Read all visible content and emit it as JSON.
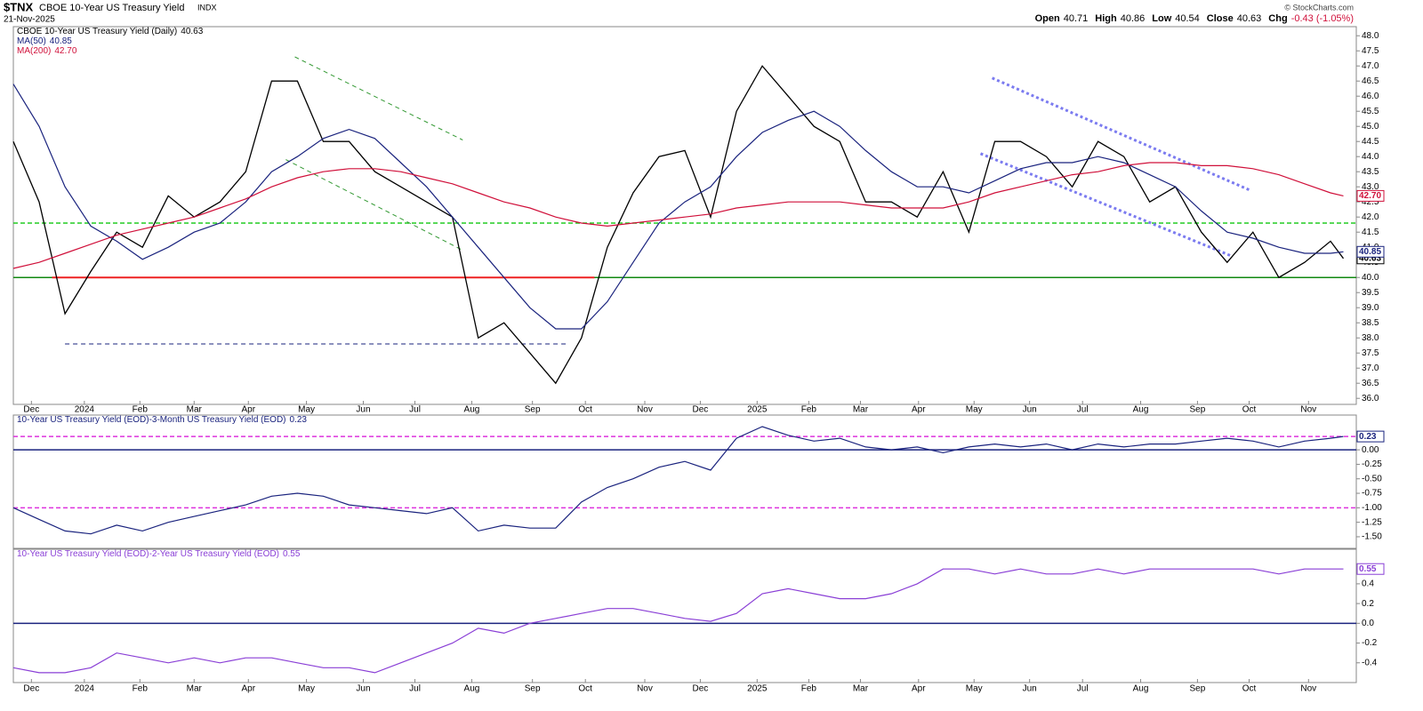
{
  "header": {
    "symbol": "$TNX",
    "name": "CBOE 10-Year US Treasury Yield",
    "exchange": "INDX",
    "date": "21-Nov-2025",
    "quote": [
      {
        "label": "Open",
        "value": "40.71"
      },
      {
        "label": "High",
        "value": "40.86"
      },
      {
        "label": "Low",
        "value": "40.54"
      },
      {
        "label": "Close",
        "value": "40.63"
      },
      {
        "label": "Chg",
        "value": "-0.43 (-1.05%)"
      }
    ],
    "copyright": "© StockCharts.com"
  },
  "chart_data": [
    {
      "type": "line",
      "x": [
        0,
        2,
        4,
        6,
        8,
        10,
        12,
        14,
        16,
        18,
        20,
        22,
        24,
        26,
        28,
        30,
        32,
        34,
        36,
        38,
        40,
        42,
        44,
        46,
        48,
        50,
        52,
        54,
        56,
        58,
        60,
        62,
        64,
        66,
        68,
        70,
        72,
        74,
        76,
        78,
        80,
        82,
        84,
        86,
        88,
        90,
        92,
        94,
        96,
        98,
        100,
        102,
        103
      ],
      "xlim": [
        0,
        104
      ],
      "xticks": [
        {
          "value": 1.4,
          "label": "Dec"
        },
        {
          "value": 5.5,
          "label": "2024"
        },
        {
          "value": 9.8,
          "label": "Feb"
        },
        {
          "value": 14.0,
          "label": "Mar"
        },
        {
          "value": 18.2,
          "label": "Apr"
        },
        {
          "value": 22.7,
          "label": "May"
        },
        {
          "value": 27.1,
          "label": "Jun"
        },
        {
          "value": 31.1,
          "label": "Jul"
        },
        {
          "value": 35.5,
          "label": "Aug"
        },
        {
          "value": 40.2,
          "label": "Sep"
        },
        {
          "value": 44.3,
          "label": "Oct"
        },
        {
          "value": 48.9,
          "label": "Nov"
        },
        {
          "value": 53.2,
          "label": "Dec"
        },
        {
          "value": 57.6,
          "label": "2025"
        },
        {
          "value": 61.6,
          "label": "Feb"
        },
        {
          "value": 65.6,
          "label": "Mar"
        },
        {
          "value": 70.1,
          "label": "Apr"
        },
        {
          "value": 74.4,
          "label": "May"
        },
        {
          "value": 78.7,
          "label": "Jun"
        },
        {
          "value": 82.8,
          "label": "Jul"
        },
        {
          "value": 87.3,
          "label": "Aug"
        },
        {
          "value": 91.7,
          "label": "Sep"
        },
        {
          "value": 95.7,
          "label": "Oct"
        },
        {
          "value": 100.3,
          "label": "Nov"
        }
      ],
      "ylim": [
        35.8,
        48.3
      ],
      "yticks": [
        {
          "value": 36.0,
          "label": "36.0"
        },
        36.5,
        {
          "value": 37.0,
          "label": "37.0"
        },
        37.5,
        {
          "value": 38.0,
          "label": "38.0"
        },
        38.5,
        {
          "value": 39.0,
          "label": "39.0"
        },
        39.5,
        {
          "value": 40.0,
          "label": "40.0"
        },
        40.5,
        {
          "value": 41.0,
          "label": "41.0"
        },
        41.5,
        {
          "value": 42.0,
          "label": "42.0"
        },
        42.5,
        {
          "value": 43.0,
          "label": "43.0"
        },
        43.5,
        {
          "value": 44.0,
          "label": "44.0"
        },
        44.5,
        {
          "value": 45.0,
          "label": "45.0"
        },
        45.5,
        {
          "value": 46.0,
          "label": "46.0"
        },
        46.5,
        {
          "value": 47.0,
          "label": "47.0"
        },
        47.5,
        {
          "value": 48.0,
          "label": "48.0"
        }
      ],
      "series": [
        {
          "name": "CBOE 10-Year US Treasury Yield (Daily)",
          "color": "#000000",
          "last_label": "40.63",
          "values": [
            44.5,
            42.5,
            38.8,
            40.2,
            41.5,
            41.0,
            42.7,
            42.0,
            42.5,
            43.5,
            46.5,
            46.5,
            44.5,
            44.5,
            43.5,
            43.0,
            42.5,
            42.0,
            38.0,
            38.5,
            37.5,
            36.5,
            38.0,
            41.0,
            42.8,
            44.0,
            44.2,
            42.0,
            45.5,
            47.0,
            46.0,
            45.0,
            44.5,
            42.5,
            42.5,
            42.0,
            43.5,
            41.5,
            44.5,
            44.5,
            44.0,
            43.0,
            44.5,
            44.0,
            42.5,
            43.0,
            41.5,
            40.5,
            41.5,
            40.0,
            40.5,
            41.2,
            40.63
          ]
        },
        {
          "name": "MA(50)",
          "color": "#1a237e",
          "last_label": "40.85",
          "values": [
            46.4,
            45.0,
            43.0,
            41.7,
            41.2,
            40.6,
            41.0,
            41.5,
            41.8,
            42.5,
            43.5,
            44.0,
            44.6,
            44.9,
            44.6,
            43.8,
            43.0,
            42.0,
            41.0,
            40.0,
            39.0,
            38.3,
            38.3,
            39.2,
            40.5,
            41.8,
            42.5,
            43.0,
            44.0,
            44.8,
            45.2,
            45.5,
            45.0,
            44.2,
            43.5,
            43.0,
            43.0,
            42.8,
            43.2,
            43.6,
            43.8,
            43.8,
            44.0,
            43.8,
            43.4,
            43.0,
            42.2,
            41.5,
            41.3,
            41.0,
            40.8,
            40.8,
            40.85
          ]
        },
        {
          "name": "MA(200)",
          "color": "#d0103a",
          "last_label": "42.70",
          "values": [
            40.3,
            40.5,
            40.8,
            41.1,
            41.4,
            41.6,
            41.8,
            42.0,
            42.3,
            42.6,
            43.0,
            43.3,
            43.5,
            43.6,
            43.6,
            43.5,
            43.3,
            43.1,
            42.8,
            42.5,
            42.3,
            42.0,
            41.8,
            41.7,
            41.8,
            41.9,
            42.0,
            42.1,
            42.3,
            42.4,
            42.5,
            42.5,
            42.5,
            42.4,
            42.3,
            42.3,
            42.3,
            42.5,
            42.8,
            43.0,
            43.2,
            43.4,
            43.5,
            43.7,
            43.8,
            43.8,
            43.7,
            43.7,
            43.6,
            43.4,
            43.1,
            42.8,
            42.7
          ]
        }
      ],
      "hlines": [
        {
          "y": 41.8,
          "color": "#22cc22",
          "dash": true
        },
        {
          "y": 40.0,
          "color": "#118811",
          "dash": false
        }
      ],
      "annotations": [
        {
          "x": [
            3,
            45
          ],
          "y": [
            40.0,
            40.0
          ],
          "color": "#ee2222",
          "style": "solid"
        },
        {
          "x": [
            4,
            43
          ],
          "y": [
            37.8,
            37.8
          ],
          "color": "#1a237e",
          "style": "dash"
        },
        {
          "x": [
            21.8,
            34.8
          ],
          "y": [
            47.3,
            44.55
          ],
          "color": "#339933",
          "style": "dash"
        },
        {
          "x": [
            21.1,
            34.8
          ],
          "y": [
            43.9,
            40.9
          ],
          "color": "#339933",
          "style": "dash"
        },
        {
          "x": [
            75.8,
            95.7
          ],
          "y": [
            46.6,
            42.9
          ],
          "color": "#7b7bf0",
          "style": "dot"
        },
        {
          "x": [
            74.9,
            94.4
          ],
          "y": [
            44.1,
            40.7
          ],
          "color": "#7b7bf0",
          "style": "dot"
        }
      ]
    },
    {
      "type": "line",
      "x": [
        0,
        2,
        4,
        6,
        8,
        10,
        12,
        14,
        16,
        18,
        20,
        22,
        24,
        26,
        28,
        30,
        32,
        34,
        36,
        38,
        40,
        42,
        44,
        46,
        48,
        50,
        52,
        54,
        56,
        58,
        60,
        62,
        64,
        66,
        68,
        70,
        72,
        74,
        76,
        78,
        80,
        82,
        84,
        86,
        88,
        90,
        92,
        94,
        96,
        98,
        100,
        102,
        103
      ],
      "xlim": [
        0,
        104
      ],
      "ylim": [
        -1.7,
        0.6
      ],
      "yticks": [
        {
          "value": 0.0,
          "label": "0.00"
        },
        -0.25,
        {
          "value": -0.5,
          "label": "-0.50"
        },
        -0.75,
        {
          "value": -1.0,
          "label": "-1.00"
        },
        -1.25,
        {
          "value": -1.5,
          "label": "-1.50"
        }
      ],
      "series": [
        {
          "name": "10-Year US Treasury Yield (EOD)-3-Month US Treasury Yield (EOD)",
          "color": "#1a237e",
          "last_label": "0.23",
          "values": [
            -1.0,
            -1.2,
            -1.4,
            -1.45,
            -1.3,
            -1.4,
            -1.25,
            -1.15,
            -1.05,
            -0.95,
            -0.8,
            -0.75,
            -0.8,
            -0.95,
            -1.0,
            -1.05,
            -1.1,
            -1.0,
            -1.4,
            -1.3,
            -1.35,
            -1.35,
            -0.9,
            -0.65,
            -0.5,
            -0.3,
            -0.2,
            -0.35,
            0.2,
            0.4,
            0.25,
            0.15,
            0.2,
            0.05,
            0.0,
            0.05,
            -0.05,
            0.05,
            0.1,
            0.05,
            0.1,
            0.0,
            0.1,
            0.05,
            0.1,
            0.1,
            0.15,
            0.2,
            0.15,
            0.05,
            0.15,
            0.2,
            0.23
          ]
        }
      ],
      "hlines": [
        {
          "y": 0.0,
          "color": "#1a237e",
          "dash": false
        },
        {
          "y": 0.23,
          "color": "#dd33dd",
          "dash": true
        },
        {
          "y": -1.0,
          "color": "#dd33dd",
          "dash": true
        }
      ]
    },
    {
      "type": "line",
      "x": [
        0,
        2,
        4,
        6,
        8,
        10,
        12,
        14,
        16,
        18,
        20,
        22,
        24,
        26,
        28,
        30,
        32,
        34,
        36,
        38,
        40,
        42,
        44,
        46,
        48,
        50,
        52,
        54,
        56,
        58,
        60,
        62,
        64,
        66,
        68,
        70,
        72,
        74,
        76,
        78,
        80,
        82,
        84,
        86,
        88,
        90,
        92,
        94,
        96,
        98,
        100,
        102,
        103
      ],
      "xlim": [
        0,
        104
      ],
      "xticks": [
        {
          "value": 1.4,
          "label": "Dec"
        },
        {
          "value": 5.5,
          "label": "2024"
        },
        {
          "value": 9.8,
          "label": "Feb"
        },
        {
          "value": 14.0,
          "label": "Mar"
        },
        {
          "value": 18.2,
          "label": "Apr"
        },
        {
          "value": 22.7,
          "label": "May"
        },
        {
          "value": 27.1,
          "label": "Jun"
        },
        {
          "value": 31.1,
          "label": "Jul"
        },
        {
          "value": 35.5,
          "label": "Aug"
        },
        {
          "value": 40.2,
          "label": "Sep"
        },
        {
          "value": 44.3,
          "label": "Oct"
        },
        {
          "value": 48.9,
          "label": "Nov"
        },
        {
          "value": 53.2,
          "label": "Dec"
        },
        {
          "value": 57.6,
          "label": "2025"
        },
        {
          "value": 61.6,
          "label": "Feb"
        },
        {
          "value": 65.6,
          "label": "Mar"
        },
        {
          "value": 70.1,
          "label": "Apr"
        },
        {
          "value": 74.4,
          "label": "May"
        },
        {
          "value": 78.7,
          "label": "Jun"
        },
        {
          "value": 82.8,
          "label": "Jul"
        },
        {
          "value": 87.3,
          "label": "Aug"
        },
        {
          "value": 91.7,
          "label": "Sep"
        },
        {
          "value": 95.7,
          "label": "Oct"
        },
        {
          "value": 100.3,
          "label": "Nov"
        }
      ],
      "ylim": [
        -0.6,
        0.75
      ],
      "yticks": [
        0.4,
        0.2,
        {
          "value": 0.0,
          "label": "0.0"
        },
        -0.2,
        -0.4
      ],
      "series": [
        {
          "name": "10-Year US Treasury Yield (EOD)-2-Year US Treasury Yield (EOD)",
          "color": "#8a3fd6",
          "last_label": "0.55",
          "values": [
            -0.45,
            -0.5,
            -0.5,
            -0.45,
            -0.3,
            -0.35,
            -0.4,
            -0.35,
            -0.4,
            -0.35,
            -0.35,
            -0.4,
            -0.45,
            -0.45,
            -0.5,
            -0.4,
            -0.3,
            -0.2,
            -0.05,
            -0.1,
            0.0,
            0.05,
            0.1,
            0.15,
            0.15,
            0.1,
            0.05,
            0.02,
            0.1,
            0.3,
            0.35,
            0.3,
            0.25,
            0.25,
            0.3,
            0.4,
            0.55,
            0.55,
            0.5,
            0.55,
            0.5,
            0.5,
            0.55,
            0.5,
            0.55,
            0.55,
            0.55,
            0.55,
            0.55,
            0.5,
            0.55,
            0.55,
            0.55
          ]
        }
      ],
      "hlines": [
        {
          "y": 0.0,
          "color": "#1a237e",
          "dash": false
        }
      ]
    }
  ]
}
